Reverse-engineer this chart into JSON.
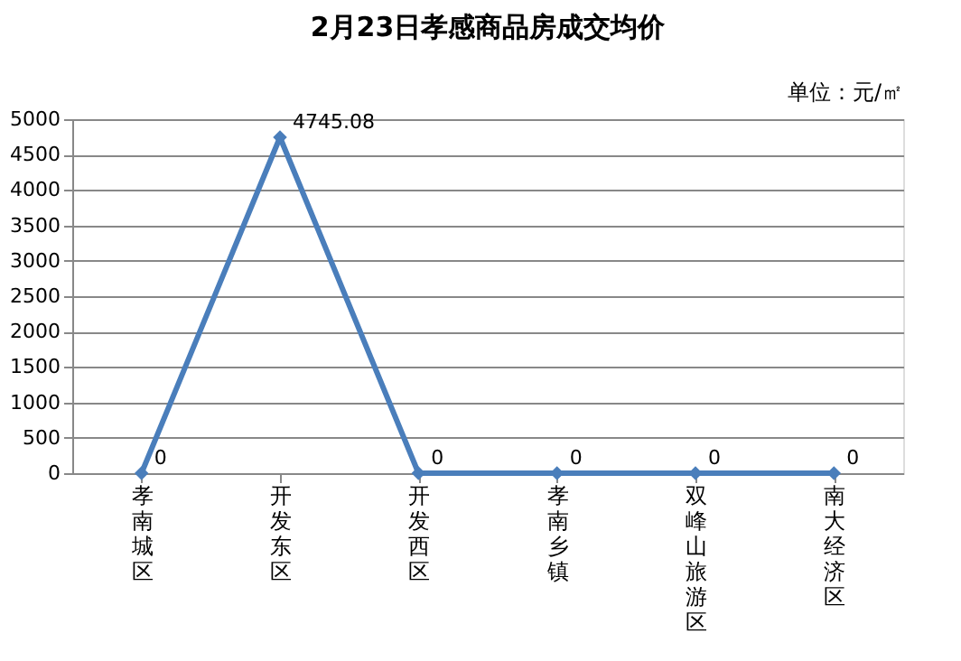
{
  "chart_data": {
    "type": "line",
    "title": "2月23日孝感商品房成交均价",
    "annotations": [
      "单位：元/㎡"
    ],
    "categories": [
      "孝南城区",
      "开发东区",
      "开发西区",
      "孝南乡镇",
      "双峰山旅游区",
      "南大经济区"
    ],
    "series": [
      {
        "color": "#4a7ebb",
        "values": [
          0,
          4745.08,
          0,
          0,
          0,
          0
        ]
      }
    ],
    "ylim": [
      0,
      5000
    ],
    "yticks": [
      0,
      500,
      1000,
      1500,
      2000,
      2500,
      3000,
      3500,
      4000,
      4500,
      5000
    ],
    "grid": "y",
    "marker": "diamond",
    "line_style": "solid",
    "data_labels": true
  }
}
